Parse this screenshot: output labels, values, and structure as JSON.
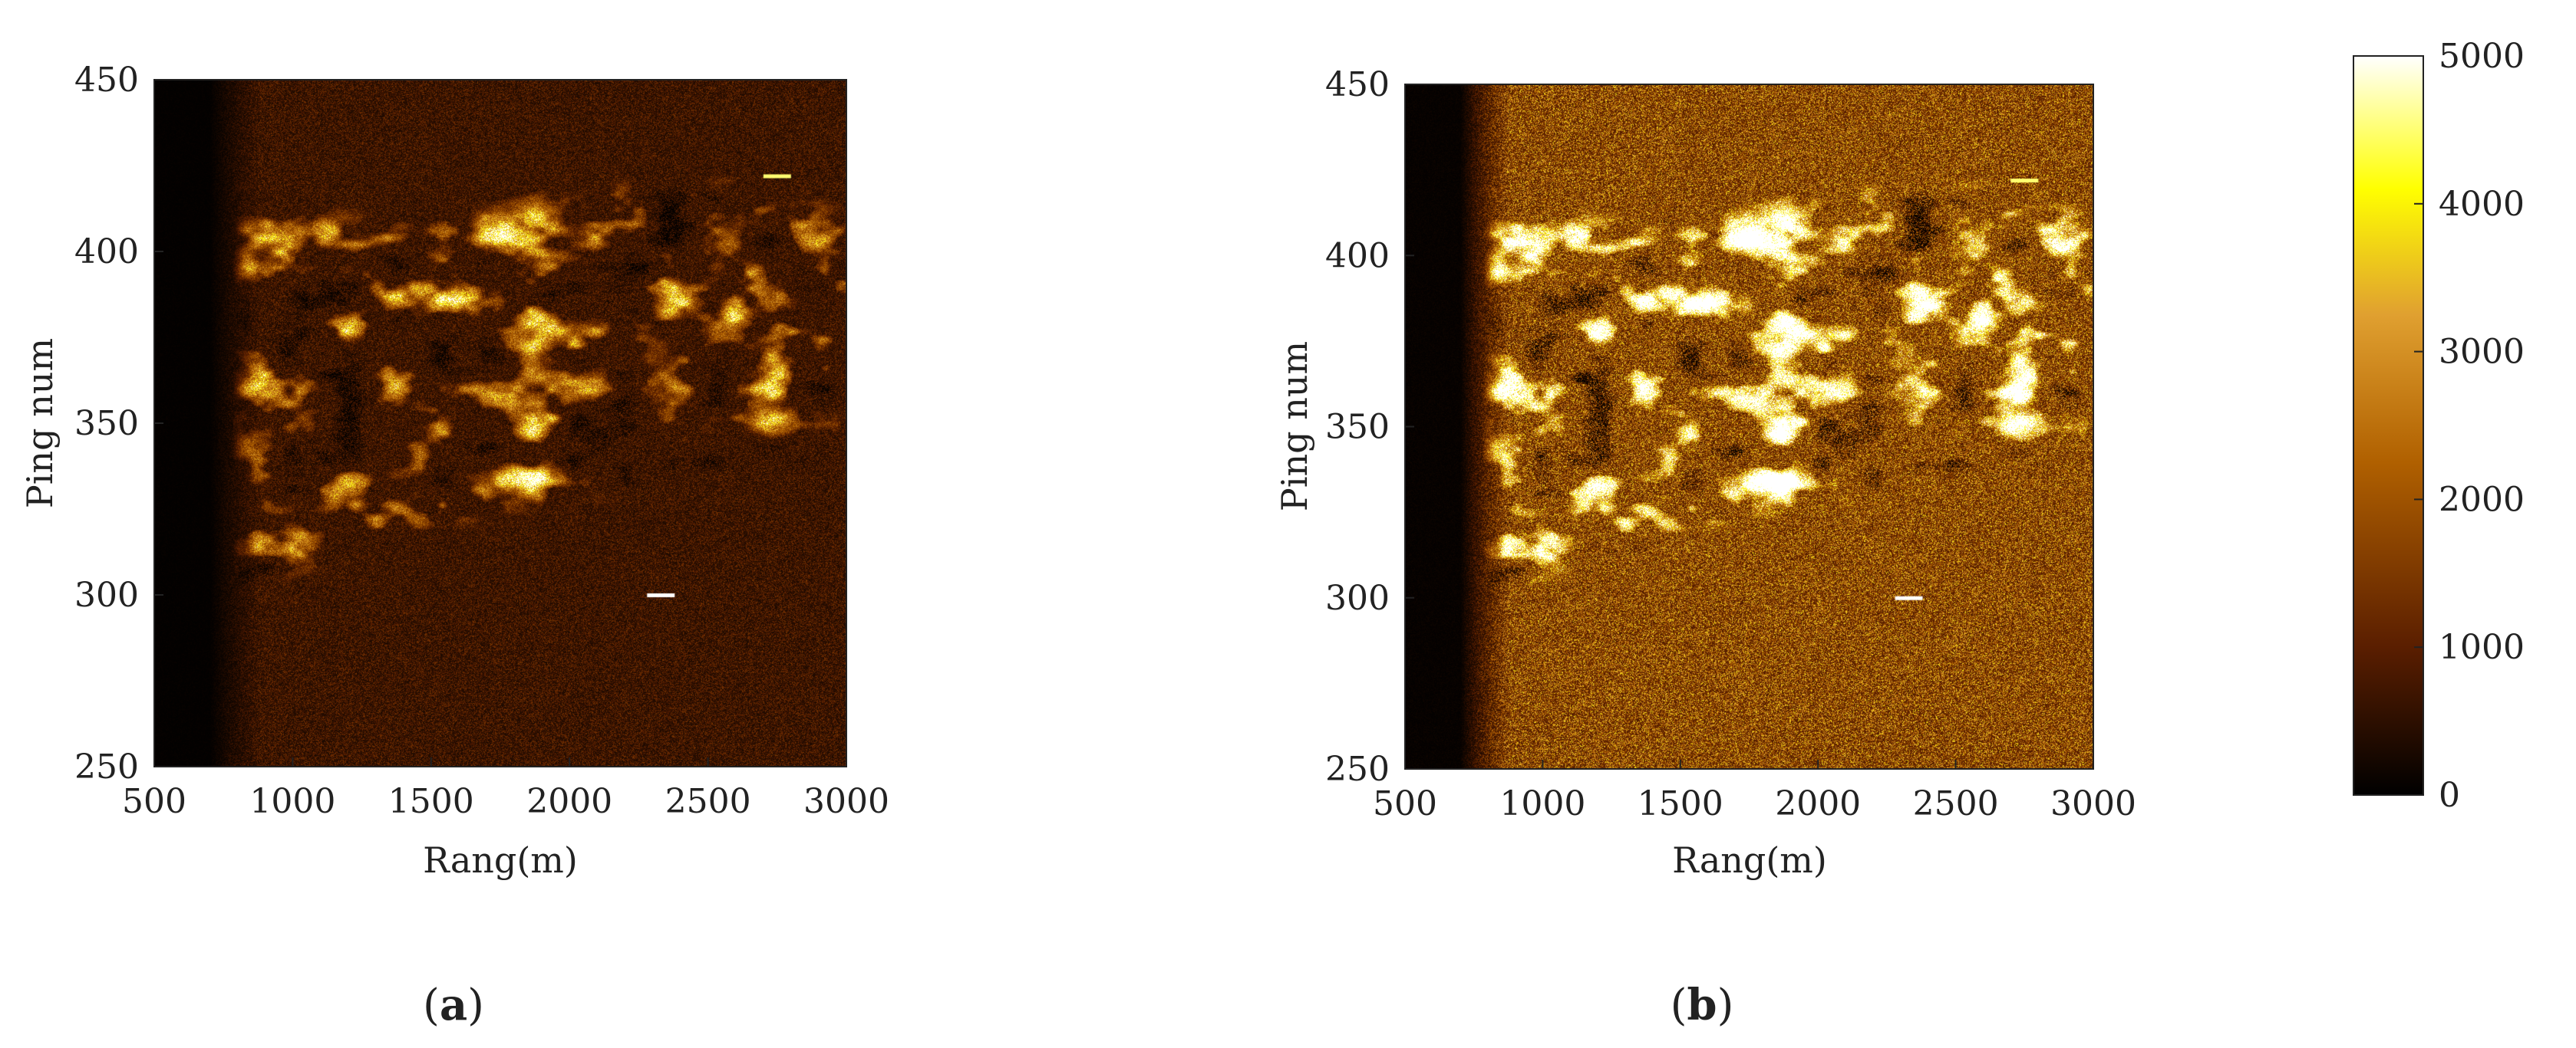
{
  "chart_data": [
    {
      "type": "heatmap",
      "panel_label_open": "(",
      "panel_label_letter": "a",
      "panel_label_close": ")",
      "xlabel": "Rang(m)",
      "ylabel": "Ping num",
      "xlim": [
        500,
        3000
      ],
      "ylim": [
        250,
        450
      ],
      "xticks": [
        "500",
        "1000",
        "1500",
        "2000",
        "2500",
        "3000"
      ],
      "yticks": [
        "250",
        "300",
        "350",
        "400",
        "450"
      ],
      "colormap": "afmhot",
      "gain": 1.0,
      "near_range_shadow_to": 820,
      "background_intensity": 900,
      "bright_targets": [
        {
          "range": 2330,
          "ping": 300,
          "intensity": 5000
        },
        {
          "range": 2750,
          "ping": 422,
          "intensity": 4500
        }
      ]
    },
    {
      "type": "heatmap",
      "panel_label_open": "(",
      "panel_label_letter": "b",
      "panel_label_close": ")",
      "xlabel": "Rang(m)",
      "ylabel": "Ping num",
      "xlim": [
        500,
        3000
      ],
      "ylim": [
        250,
        450
      ],
      "xticks": [
        "500",
        "1000",
        "1500",
        "2000",
        "2500",
        "3000"
      ],
      "yticks": [
        "250",
        "300",
        "350",
        "400",
        "450"
      ],
      "colormap": "afmhot",
      "gain": 1.7,
      "near_range_shadow_to": 820,
      "background_intensity": 1400,
      "bright_targets": [
        {
          "range": 2330,
          "ping": 300,
          "intensity": 5000
        },
        {
          "range": 2750,
          "ping": 422,
          "intensity": 4500
        }
      ]
    }
  ],
  "colorbar": {
    "range": [
      0,
      5000
    ],
    "ticks": [
      "0",
      "1000",
      "2000",
      "3000",
      "4000",
      "5000"
    ]
  },
  "colors": {
    "colormap_stops": [
      "#000000",
      "#5a1e00",
      "#b06000",
      "#e0a030",
      "#ffff00",
      "#ffffff"
    ]
  }
}
